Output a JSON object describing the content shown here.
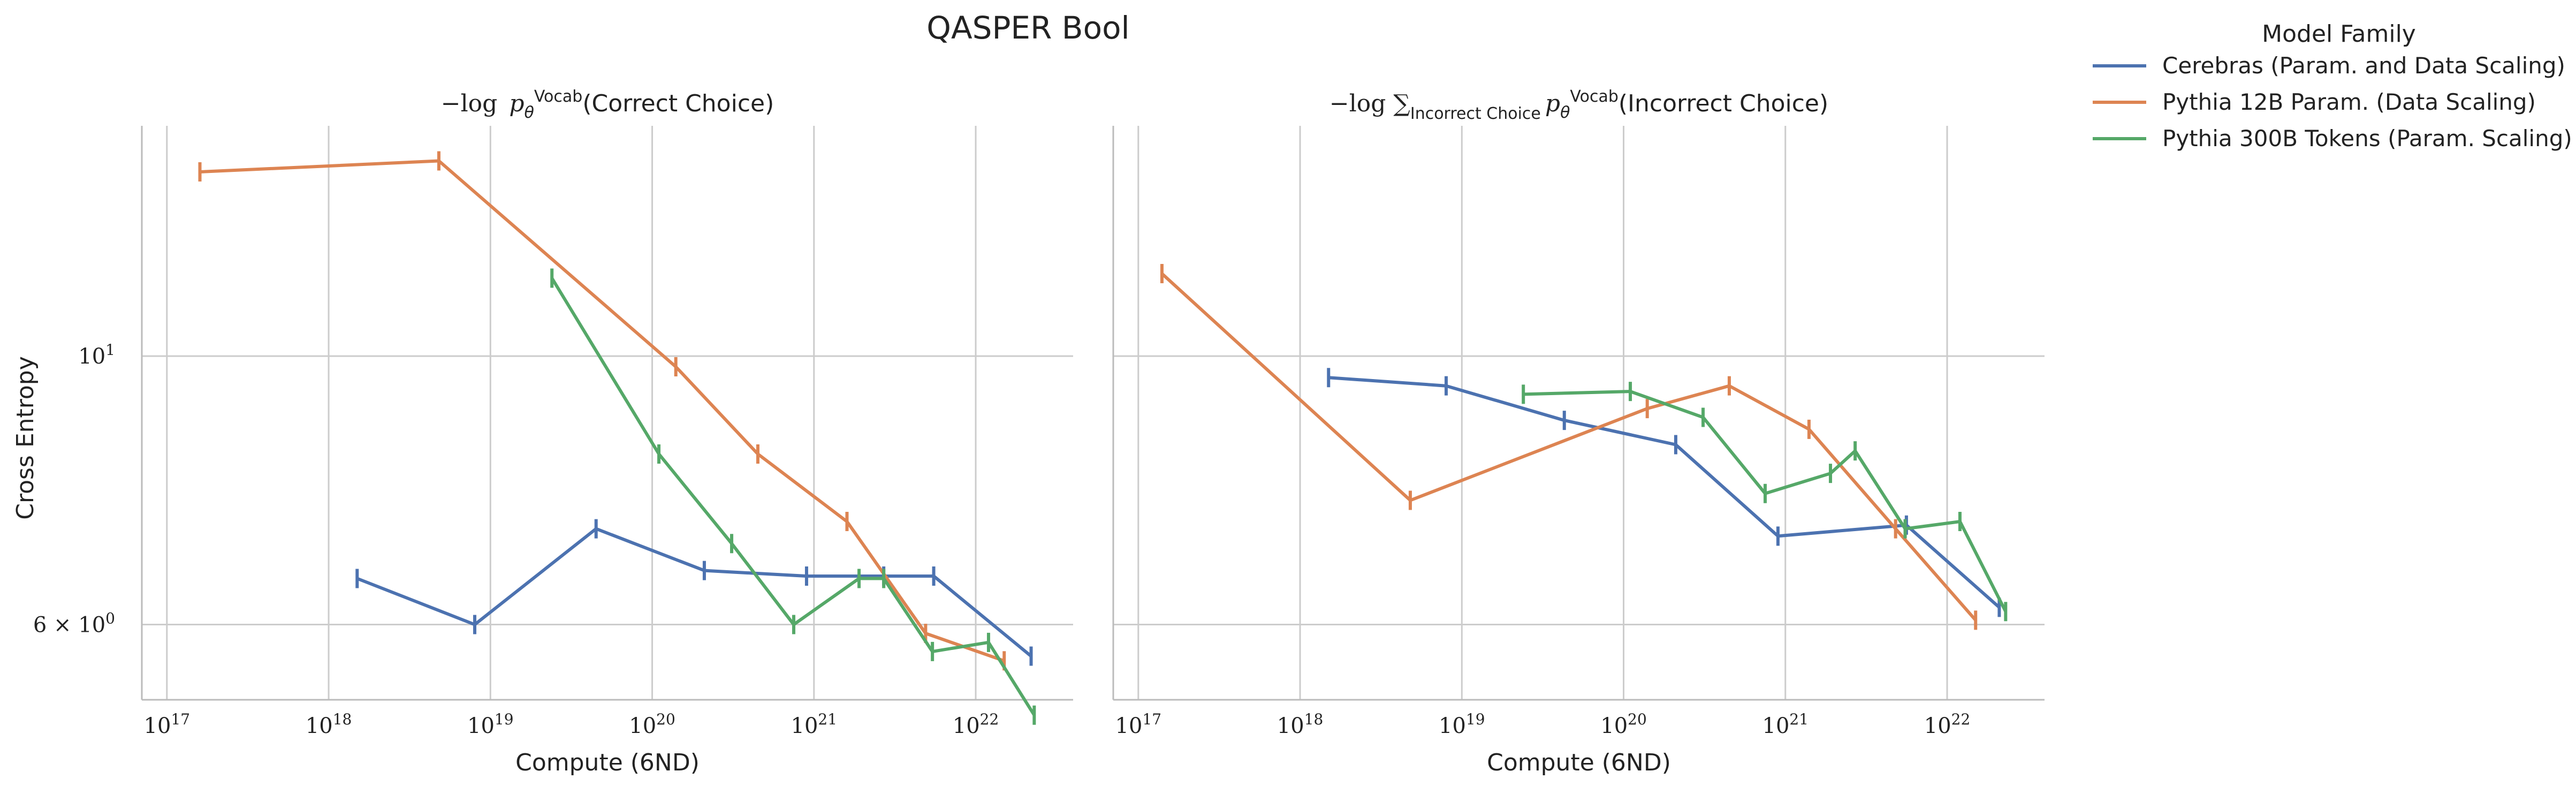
{
  "figure": {
    "suptitle": "QASPER Bool",
    "ylabel": "Cross Entropy",
    "legend": {
      "title": "Model Family",
      "entries": [
        {
          "name": "Cerebras (Param. and Data Scaling)",
          "color": "#4c72b0"
        },
        {
          "name": "Pythia 12B Param. (Data Scaling)",
          "color": "#dd8452"
        },
        {
          "name": "Pythia 300B Tokens (Param. Scaling)",
          "color": "#55a868"
        }
      ]
    }
  },
  "chart_data": [
    {
      "type": "line",
      "title": "−log p_θ^Vocab(Correct Choice)",
      "title_parts": {
        "lead": "−log ",
        "sym": "p",
        "theta": "θ",
        "sup": "Vocab",
        "arg": "(Correct Choice)"
      },
      "xlabel": "Compute (6ND)",
      "ylabel": "Cross Entropy",
      "x_scale": "log",
      "y_scale": "log",
      "xlim": [
        7e+16,
        4e+22
      ],
      "ylim": [
        5.2,
        15.5
      ],
      "x_ticks": [
        {
          "base": "10",
          "exp": "17",
          "value": 1e+17
        },
        {
          "base": "10",
          "exp": "18",
          "value": 1e+18
        },
        {
          "base": "10",
          "exp": "19",
          "value": 1e+19
        },
        {
          "base": "10",
          "exp": "20",
          "value": 1e+20
        },
        {
          "base": "10",
          "exp": "21",
          "value": 1e+21
        },
        {
          "base": "10",
          "exp": "22",
          "value": 1e+22
        }
      ],
      "y_ticks": [
        {
          "text": "10",
          "exp": "1",
          "value": 10
        },
        {
          "text": "6 × 10",
          "exp": "0",
          "value": 6
        }
      ],
      "grid": true,
      "series": [
        {
          "name": "Cerebras (Param. and Data Scaling)",
          "color": "#4c72b0",
          "x": [
            1.5e+18,
            8e+18,
            4.5e+19,
            2.1e+20,
            9e+20,
            2.7e+21,
            5.5e+21,
            2.2e+22
          ],
          "y": [
            6.55,
            6.0,
            7.2,
            6.65,
            6.58,
            6.58,
            6.58,
            5.65
          ]
        },
        {
          "name": "Pythia 12B Param. (Data Scaling)",
          "color": "#dd8452",
          "x": [
            1.6e+17,
            4.8e+18,
            1.4e+20,
            4.5e+20,
            1.6e+21,
            4.9e+21,
            1.5e+22
          ],
          "y": [
            14.2,
            14.5,
            9.8,
            8.3,
            7.3,
            5.9,
            5.6
          ]
        },
        {
          "name": "Pythia 300B Tokens (Param. Scaling)",
          "color": "#55a868",
          "x": [
            2.4e+19,
            1.1e+20,
            3.1e+20,
            7.5e+20,
            1.9e+21,
            2.7e+21,
            5.4e+21,
            1.2e+22,
            2.3e+22
          ],
          "y": [
            11.6,
            8.3,
            7.0,
            6.0,
            6.55,
            6.55,
            5.7,
            5.8,
            5.05
          ]
        }
      ]
    },
    {
      "type": "line",
      "title": "−log ∑ p_θ^Vocab(Incorrect Choice)",
      "title_parts": {
        "lead": "−log ∑",
        "sub": "Incorrect Choice",
        "sym": "p",
        "theta": "θ",
        "sup": "Vocab",
        "arg": "(Incorrect Choice)"
      },
      "xlabel": "Compute (6ND)",
      "x_scale": "log",
      "y_scale": "log",
      "xlim": [
        7e+16,
        4e+22
      ],
      "ylim": [
        5.2,
        15.5
      ],
      "x_ticks": [
        {
          "base": "10",
          "exp": "17",
          "value": 1e+17
        },
        {
          "base": "10",
          "exp": "18",
          "value": 1e+18
        },
        {
          "base": "10",
          "exp": "19",
          "value": 1e+19
        },
        {
          "base": "10",
          "exp": "20",
          "value": 1e+20
        },
        {
          "base": "10",
          "exp": "21",
          "value": 1e+21
        },
        {
          "base": "10",
          "exp": "22",
          "value": 1e+22
        }
      ],
      "grid": true,
      "series": [
        {
          "name": "Cerebras (Param. and Data Scaling)",
          "color": "#4c72b0",
          "x": [
            1.5e+18,
            8e+18,
            4.3e+19,
            2.1e+20,
            9e+20,
            5.6e+21,
            2.1e+22
          ],
          "y": [
            9.6,
            9.45,
            8.85,
            8.45,
            7.1,
            7.25,
            6.2
          ]
        },
        {
          "name": "Pythia 12B Param. (Data Scaling)",
          "color": "#dd8452",
          "x": [
            1.4e+17,
            4.8e+18,
            1.4e+20,
            4.5e+20,
            1.4e+21,
            4.8e+21,
            1.5e+22
          ],
          "y": [
            11.7,
            7.6,
            9.05,
            9.45,
            8.7,
            7.2,
            6.05
          ]
        },
        {
          "name": "Pythia 300B Tokens (Param. Scaling)",
          "color": "#55a868",
          "x": [
            2.4e+19,
            1.1e+20,
            3.1e+20,
            7.5e+20,
            1.9e+21,
            2.7e+21,
            5.5e+21,
            1.2e+22,
            2.3e+22
          ],
          "y": [
            9.3,
            9.35,
            8.9,
            7.7,
            8.0,
            8.35,
            7.2,
            7.3,
            6.15
          ]
        }
      ]
    }
  ]
}
